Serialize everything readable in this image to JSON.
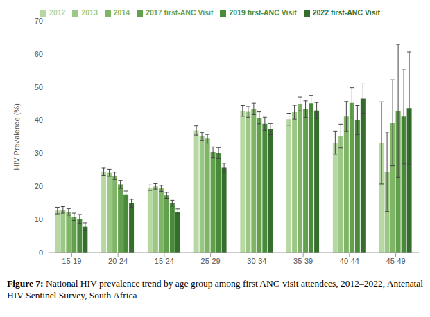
{
  "chart_data": {
    "type": "bar",
    "caption_label": "Figure 7:",
    "caption": "National HIV prevalence trend by age group among first ANC-visit attendees, 2012–2022, Antenatal HIV Sentinel Survey, South Africa",
    "y_label": "HIV Prevalence (%)",
    "categories": [
      "15-19",
      "20-24",
      "15-24",
      "25-29",
      "30-34",
      "35-39",
      "40-44",
      "45-49"
    ],
    "series": [
      {
        "name": "2012",
        "color": "#b7d7a3",
        "values": [
          12.7,
          24.4,
          19.6,
          36.9,
          42.8,
          40.3,
          33.2,
          33.1
        ],
        "errors": [
          1.0,
          1.1,
          0.8,
          1.4,
          1.6,
          1.8,
          3.5,
          12.4
        ]
      },
      {
        "name": "2013",
        "color": "#9cc886",
        "values": [
          12.9,
          24.1,
          20.0,
          35.1,
          42.5,
          42.4,
          35.2,
          24.4
        ],
        "errors": [
          1.0,
          1.1,
          0.8,
          1.2,
          1.6,
          2.1,
          3.6,
          12.0
        ]
      },
      {
        "name": "2014",
        "color": "#80b467",
        "values": [
          12.3,
          23.2,
          19.4,
          34.4,
          43.4,
          44.9,
          41.1,
          39.2
        ],
        "errors": [
          1.0,
          1.1,
          0.9,
          1.3,
          1.7,
          2.1,
          4.5,
          13.0
        ]
      },
      {
        "name": "2017 first-ANC Visit",
        "color": "#63a04d",
        "values": [
          10.8,
          20.6,
          17.3,
          30.3,
          40.7,
          43.3,
          45.2,
          42.8
        ],
        "errors": [
          1.1,
          1.2,
          0.9,
          1.6,
          1.8,
          2.5,
          4.6,
          20.1
        ]
      },
      {
        "name": "2019 first-ANC Visit",
        "color": "#4a8b3b",
        "values": [
          10.2,
          17.4,
          14.9,
          30.1,
          38.9,
          45.1,
          40.0,
          41.1
        ],
        "errors": [
          1.3,
          1.2,
          0.9,
          1.6,
          2.0,
          2.4,
          4.4,
          14.3
        ]
      },
      {
        "name": "2022 first-ANC Visit",
        "color": "#356d2c",
        "values": [
          7.8,
          14.9,
          12.3,
          25.6,
          37.3,
          42.9,
          46.5,
          43.6
        ],
        "errors": [
          1.2,
          1.2,
          0.9,
          1.4,
          1.7,
          2.4,
          4.4,
          17.0
        ]
      }
    ],
    "ylim": [
      0,
      70
    ],
    "yticks": [
      0,
      10,
      20,
      30,
      40,
      50,
      60,
      70
    ],
    "grid": false,
    "legend": "top"
  }
}
